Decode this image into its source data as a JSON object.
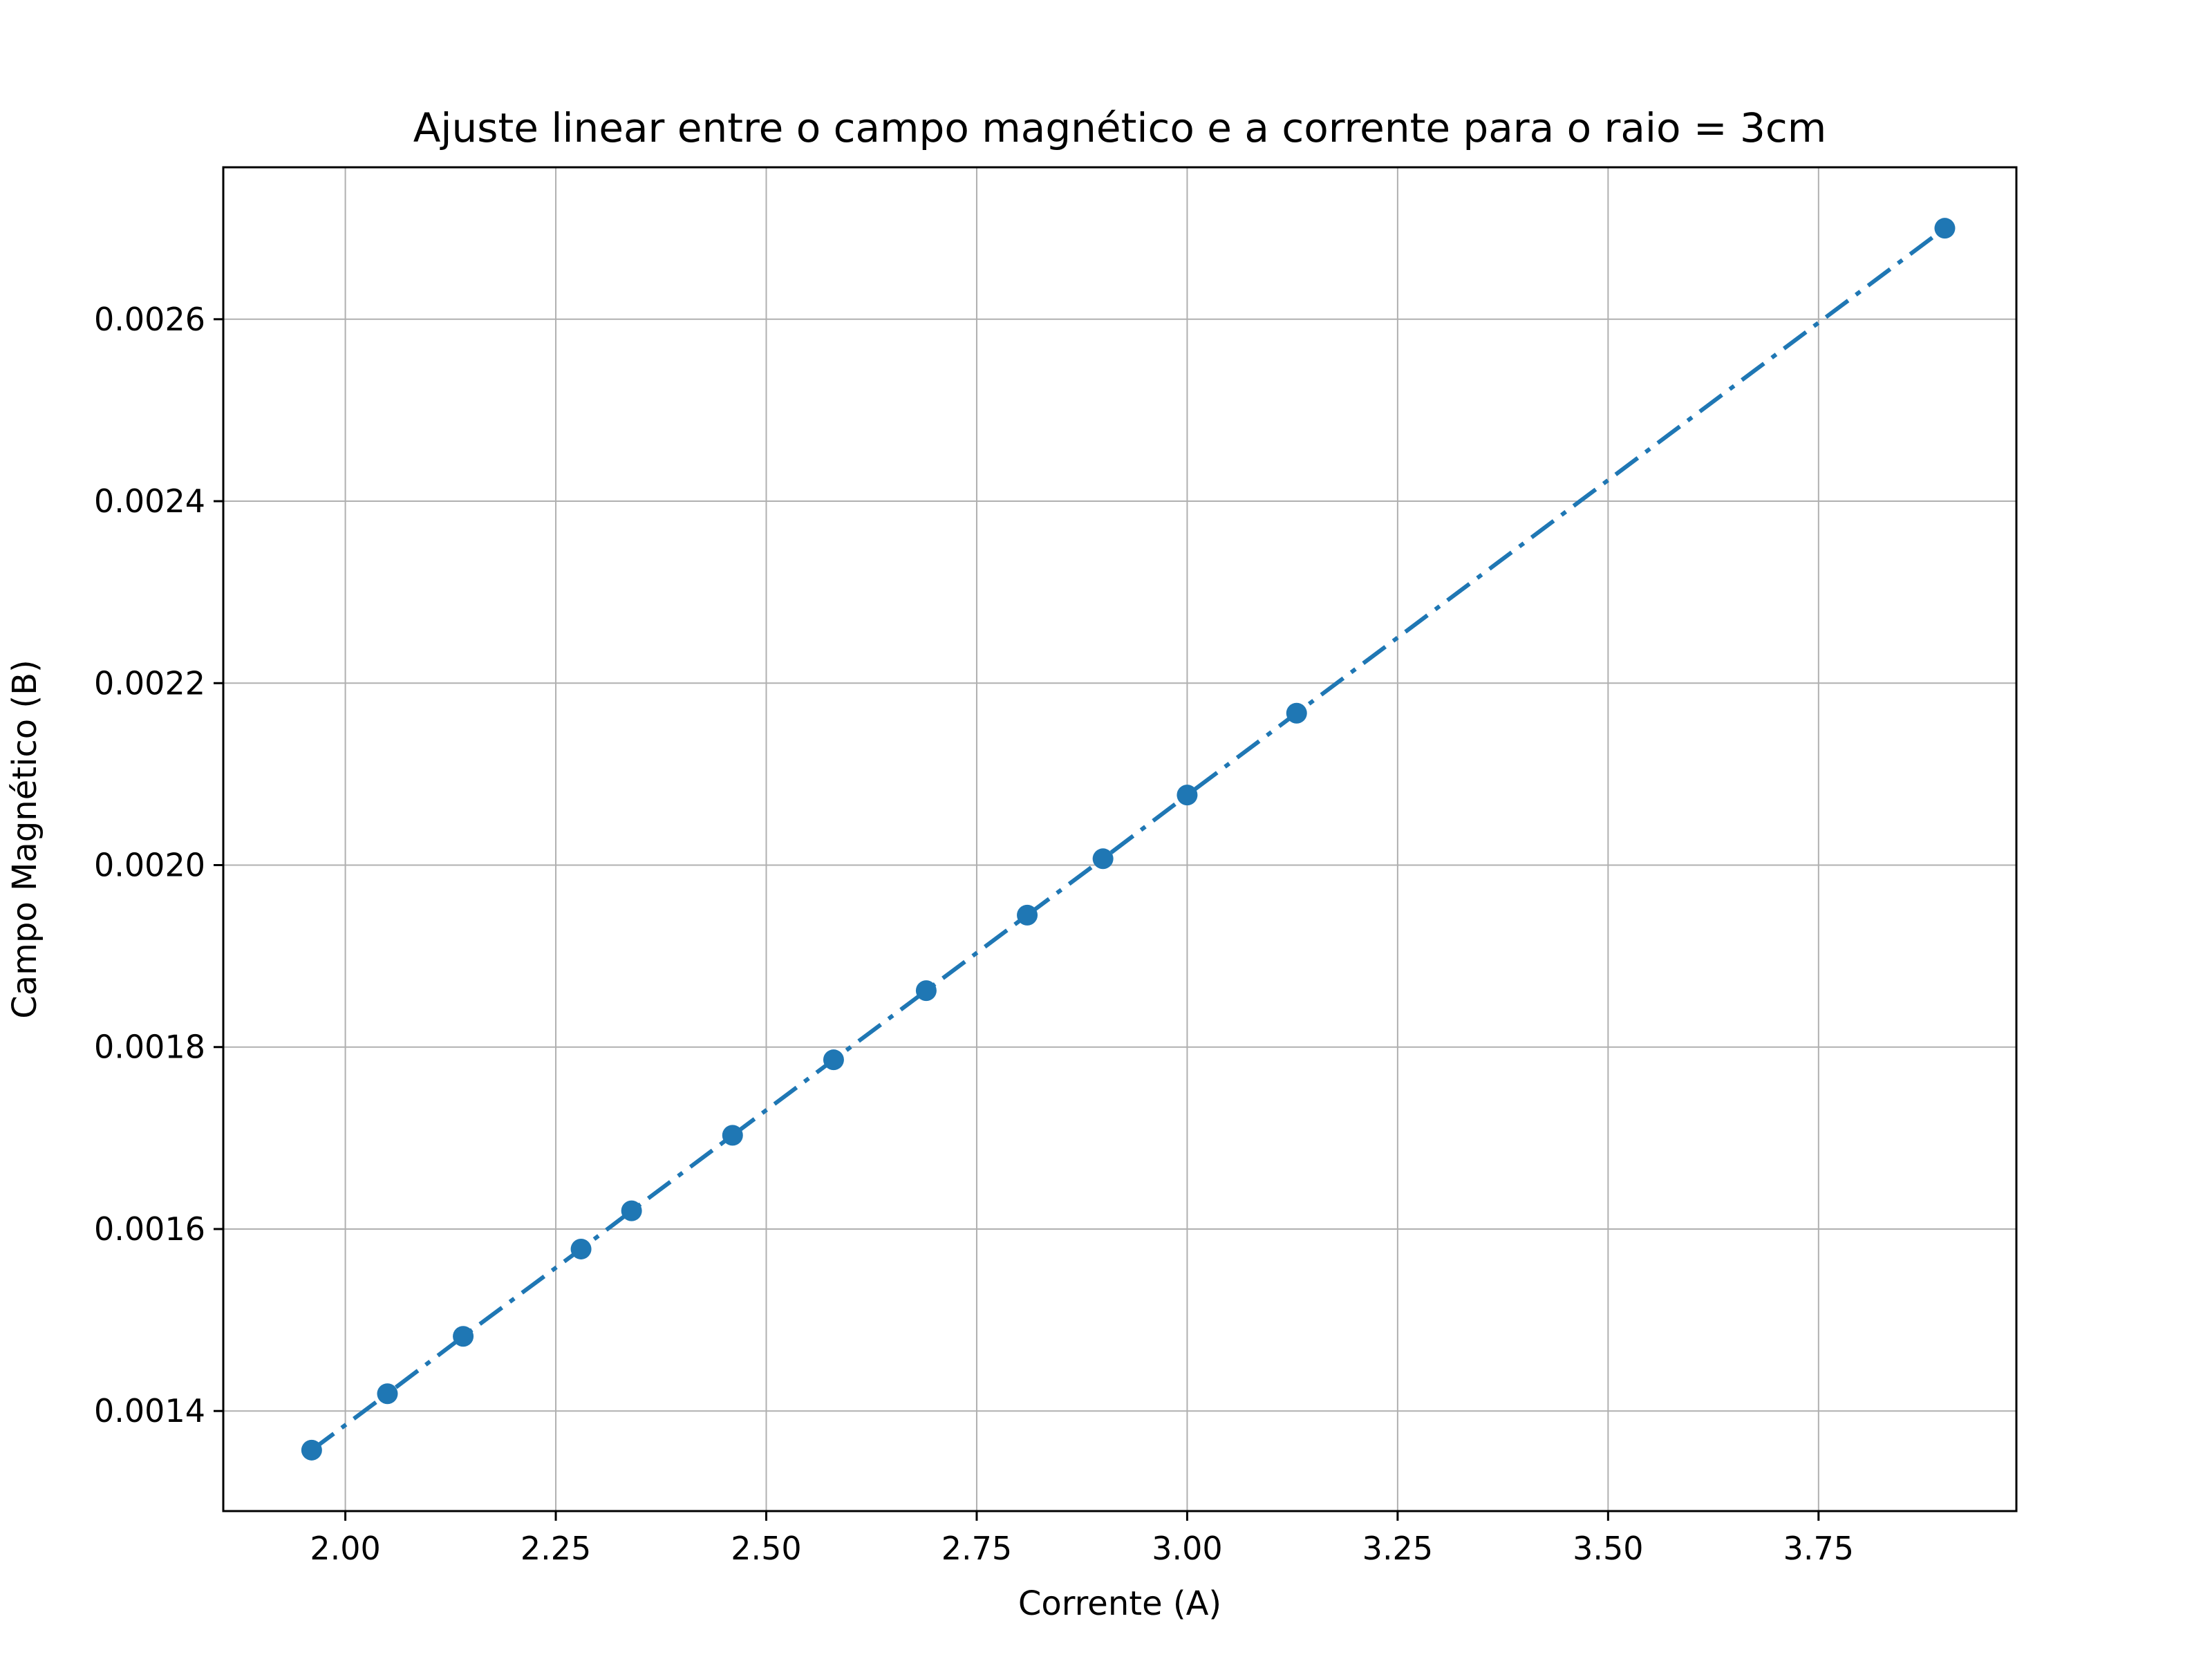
{
  "chart_data": {
    "type": "scatter",
    "title": "Ajuste linear entre o campo magnético e a corrente para o raio = 3cm",
    "xlabel": "Corrente (A)",
    "ylabel": "Campo Magnético (B)",
    "xlim": [
      1.855,
      3.985
    ],
    "ylim": [
      0.00129,
      0.002767
    ],
    "xticks": [
      2.0,
      2.25,
      2.5,
      2.75,
      3.0,
      3.25,
      3.5,
      3.75
    ],
    "xtick_labels": [
      "2.00",
      "2.25",
      "2.50",
      "2.75",
      "3.00",
      "3.25",
      "3.50",
      "3.75"
    ],
    "yticks": [
      0.0014,
      0.0016,
      0.0018,
      0.002,
      0.0022,
      0.0024,
      0.0026
    ],
    "ytick_labels": [
      "0.0014",
      "0.0016",
      "0.0018",
      "0.0020",
      "0.0022",
      "0.0024",
      "0.0026"
    ],
    "grid": true,
    "color": "#1f77b4",
    "series": [
      {
        "marker": "circle",
        "line": "dash-dot",
        "x": [
          1.96,
          2.05,
          2.14,
          2.28,
          2.34,
          2.46,
          2.58,
          2.69,
          2.81,
          2.9,
          3.0,
          3.13,
          3.9
        ],
        "y": [
          0.001357,
          0.001419,
          0.001482,
          0.001578,
          0.00162,
          0.001703,
          0.001786,
          0.001862,
          0.001945,
          0.002007,
          0.002077,
          0.002167,
          0.0027
        ]
      }
    ]
  }
}
